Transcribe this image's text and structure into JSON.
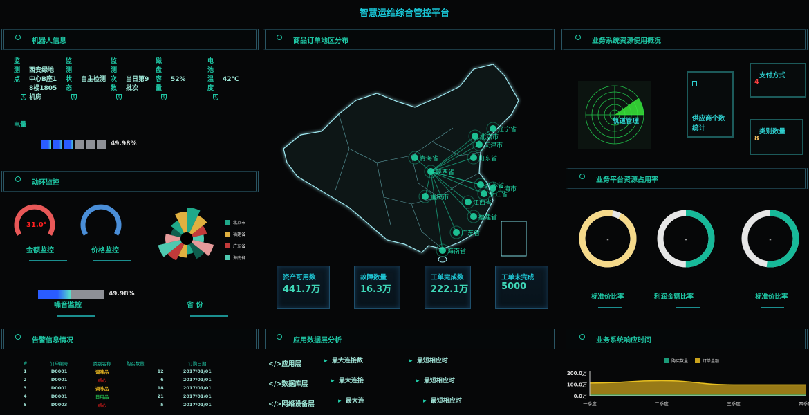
{
  "title": "智慧运维综合管控平台",
  "panels": {
    "robot": {
      "title": "机器人信息",
      "cols": [
        {
          "label": "监测点",
          "value": "西安绿地中心B座18楼1805机房"
        },
        {
          "label": "监测状态",
          "value": "自主检测"
        },
        {
          "label": "监测次数",
          "value": "当日第9批次"
        },
        {
          "label": "磁盘容量",
          "value": "52%"
        },
        {
          "label": "电池温度",
          "value": "42°C"
        }
      ],
      "power_label": "电量",
      "power_pct": "49.98%",
      "power_fraction": 0.4998
    },
    "env": {
      "title": "动环监控",
      "gauge1_label": "金额监控",
      "gauge1_value": "31.0°",
      "gauge2_label": "价格监控",
      "noise_pct": "49.98%",
      "noise_fraction": 0.4998,
      "noise_label": "噪音监控",
      "rose_label": "省 份",
      "legend": [
        {
          "name": "北京市",
          "color": "#1fa98a"
        },
        {
          "name": "福建省",
          "color": "#e0b040"
        },
        {
          "name": "广东省",
          "color": "#c23a3a"
        },
        {
          "name": "海南省",
          "color": "#4fc9b0"
        }
      ]
    },
    "alarm": {
      "title": "告警信息情况",
      "headers": [
        "#",
        "订单编号",
        "类别名称",
        "购买数量",
        "订购日期"
      ],
      "rows": [
        [
          "1",
          "D0001",
          "调味品",
          "12",
          "2017/01/01"
        ],
        [
          "2",
          "D0001",
          "点心",
          "6",
          "2017/01/01"
        ],
        [
          "3",
          "D0001",
          "调味品",
          "18",
          "2017/01/01"
        ],
        [
          "4",
          "D0001",
          "日用品",
          "21",
          "2017/01/01"
        ],
        [
          "5",
          "D0003",
          "点心",
          "5",
          "2017/01/01"
        ]
      ],
      "category_colors": {
        "调味品": "#e0b020",
        "点心": "#b01818",
        "日用品": "#22b04a"
      }
    },
    "map": {
      "title": "商品订单地区分布",
      "labels": [
        "辽宁省",
        "北京市",
        "天津市",
        "青海省",
        "山东省",
        "陕西省",
        "江苏省",
        "上海市",
        "浙江省",
        "重庆市",
        "江西省",
        "福建省",
        "广东省",
        "海南省"
      ],
      "stats": [
        {
          "label": "资产可用数",
          "value": "441.7万"
        },
        {
          "label": "故障数量",
          "value": "16.3万"
        },
        {
          "label": "工单完成数",
          "value": "222.1万"
        },
        {
          "label": "工单未完成",
          "value": "5000"
        }
      ]
    },
    "appdata": {
      "title": "应用数据层分析",
      "rows": [
        {
          "layer": "</>应用层",
          "a": "最大连接数",
          "b": "最短相应时"
        },
        {
          "layer": "</>数据库层",
          "a": "最大连接",
          "b": "最短相应时"
        },
        {
          "layer": "</>网络设备层",
          "a": "最大连",
          "b": "最短相应时"
        }
      ]
    },
    "resource": {
      "title": "业务系统资源使用概况",
      "radar_label": "轨道管理",
      "supplier_label": "供应商个数统计",
      "pay_label": "支付方式",
      "pay_value": "4",
      "cat_label": "类别数量",
      "cat_value": "8"
    },
    "platform": {
      "title": "业务平台资源占用率",
      "donuts": [
        {
          "label": "标准价比率",
          "center": "-",
          "fraction": 0.95,
          "color": "#f5d98a"
        },
        {
          "label": "利润金额比率",
          "center": "-",
          "fraction": 0.5,
          "color": "#17b999"
        },
        {
          "label": "标准价比率",
          "center": "-",
          "fraction": 0.52,
          "color": "#17b999"
        }
      ]
    },
    "response": {
      "title": "业务系统响应时间"
    }
  },
  "chart_data": {
    "type": "area",
    "categories": [
      "一季度",
      "二季度",
      "三季度",
      "四季度"
    ],
    "yticks": [
      "0.0万",
      "100.0万",
      "200.0万"
    ],
    "ylim": [
      0,
      200
    ],
    "legend_position": "top",
    "series": [
      {
        "name": "购买数量",
        "color": "#1a9a78",
        "values": [
          5,
          5,
          5,
          5
        ]
      },
      {
        "name": "订单金额",
        "color": "#c9a21c",
        "values": [
          110,
          130,
          95,
          95
        ]
      }
    ]
  },
  "rose_data": {
    "values": [
      70,
      55,
      40,
      30,
      60,
      45,
      25,
      35,
      50,
      65,
      42,
      28,
      38,
      58
    ],
    "colors": [
      "#1fa98a",
      "#e0b040",
      "#c23a3a",
      "#4fc9b0",
      "#e59a9a",
      "#0e5e4e"
    ]
  }
}
